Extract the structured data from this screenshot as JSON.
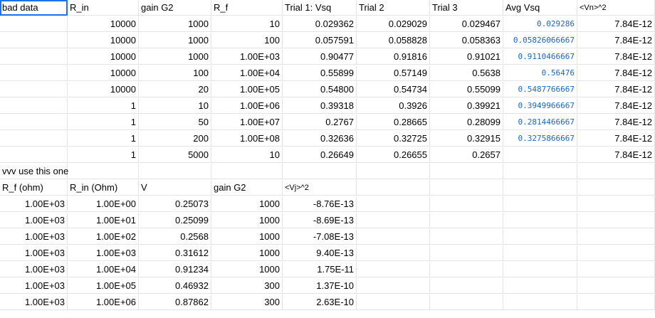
{
  "top_headers": [
    "bad data",
    "R_in",
    "gain G2",
    "R_f",
    "Trial 1: Vsq",
    "Trial 2",
    "Trial 3",
    "Avg Vsq",
    "<Vn>^2"
  ],
  "top_rows": [
    [
      "",
      "10000",
      "1000",
      "10",
      "0.029362",
      "0.029029",
      "0.029467",
      "0.029286",
      "7.84E-12"
    ],
    [
      "",
      "10000",
      "1000",
      "100",
      "0.057591",
      "0.058828",
      "0.058363",
      "0.05826066667",
      "7.84E-12"
    ],
    [
      "",
      "10000",
      "1000",
      "1.00E+03",
      "0.90477",
      "0.91816",
      "0.91021",
      "0.9110466667",
      "7.84E-12"
    ],
    [
      "",
      "10000",
      "100",
      "1.00E+04",
      "0.55899",
      "0.57149",
      "0.5638",
      "0.56476",
      "7.84E-12"
    ],
    [
      "",
      "10000",
      "20",
      "1.00E+05",
      "0.54800",
      "0.54734",
      "0.55099",
      "0.5487766667",
      "7.84E-12"
    ],
    [
      "",
      "1",
      "10",
      "1.00E+06",
      "0.39318",
      "0.3926",
      "0.39921",
      "0.3949966667",
      "7.84E-12"
    ],
    [
      "",
      "1",
      "50",
      "1.00E+07",
      "0.2767",
      "0.28665",
      "0.28099",
      "0.2814466667",
      "7.84E-12"
    ],
    [
      "",
      "1",
      "200",
      "1.00E+08",
      "0.32636",
      "0.32725",
      "0.32915",
      "0.3275866667",
      "7.84E-12"
    ],
    [
      "",
      "1",
      "5000",
      "10",
      "0.26649",
      "0.26655",
      "0.2657",
      "",
      "7.84E-12"
    ]
  ],
  "note": "vvv use this one",
  "bottom_headers": [
    "R_f (ohm)",
    "R_in (Ohm)",
    "V",
    "gain G2",
    "<Vj>^2"
  ],
  "bottom_rows": [
    [
      "1.00E+03",
      "1.00E+00",
      "0.25073",
      "1000",
      "-8.76E-13"
    ],
    [
      "1.00E+03",
      "1.00E+01",
      "0.25099",
      "1000",
      "-8.69E-13"
    ],
    [
      "1.00E+03",
      "1.00E+02",
      "0.2568",
      "1000",
      "-7.08E-13"
    ],
    [
      "1.00E+03",
      "1.00E+03",
      "0.31612",
      "1000",
      "9.40E-13"
    ],
    [
      "1.00E+03",
      "1.00E+04",
      "0.91234",
      "1000",
      "1.75E-11"
    ],
    [
      "1.00E+03",
      "1.00E+05",
      "0.46932",
      "300",
      "1.37E-10"
    ],
    [
      "1.00E+03",
      "1.00E+06",
      "0.87862",
      "300",
      "2.63E-10"
    ]
  ]
}
